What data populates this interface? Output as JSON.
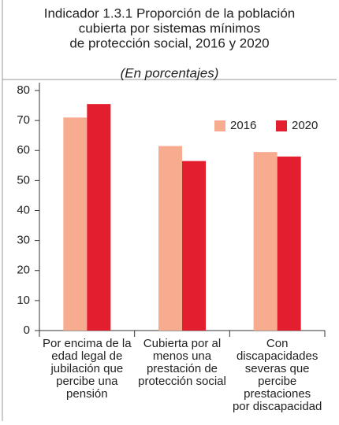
{
  "chart_data": {
    "type": "bar",
    "title": [
      "Indicador  1.3.1 Proporción de la población",
      "cubierta por sistemas mínimos",
      "de protección social, 2016 y 2020"
    ],
    "subtitle": "(En porcentajes)",
    "categories": [
      [
        "Por encima de la",
        "edad legal de",
        "jubilación que",
        "percibe una",
        "pensión"
      ],
      [
        "Cubierta por al",
        "menos una",
        "prestación de",
        "protección social"
      ],
      [
        "Con",
        "discapacidades",
        "severas que",
        "percibe",
        "prestaciones",
        "por discapacidad"
      ]
    ],
    "series": [
      {
        "name": "2016",
        "color": "#f7ab8f",
        "values": [
          71,
          61.5,
          59.5
        ]
      },
      {
        "name": "2020",
        "color": "#e31e2f",
        "values": [
          75.5,
          56.5,
          58
        ]
      }
    ],
    "ylim": [
      0,
      80
    ],
    "yticks": [
      0,
      10,
      20,
      30,
      40,
      50,
      60,
      70,
      80
    ],
    "legend": "top-right"
  }
}
